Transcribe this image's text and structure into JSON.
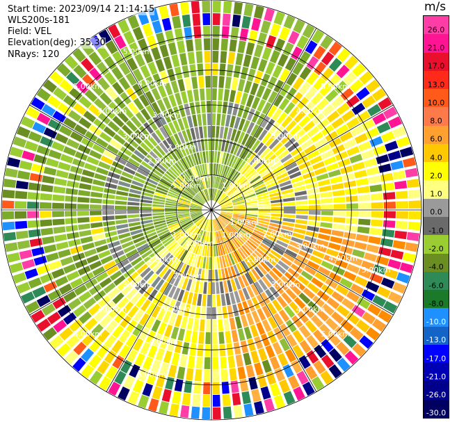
{
  "header": {
    "start_time": "Start time: 2023/09/14 21:14:15",
    "site": "WLS200s-181",
    "field": "Field: VEL",
    "elevation": "Elevation(deg): 35.30",
    "nrays": "NRays: 120"
  },
  "colorbar": {
    "unit": "m/s",
    "ticks": [
      "26.0",
      "21.0",
      "17.0",
      "13.0",
      "10.0",
      "8.0",
      "6.0",
      "4.0",
      "2.0",
      "1.0",
      "0.0",
      "-1.0",
      "-2.0",
      "-4.0",
      "-6.0",
      "-8.0",
      "-10.0",
      "-13.0",
      "-17.0",
      "-21.0",
      "-26.0",
      "-30.0"
    ],
    "colors": [
      "#ff3da6",
      "#ff1493",
      "#e8102c",
      "#ff2a1a",
      "#ff5a1a",
      "#ff7a4a",
      "#ffa030",
      "#ffc800",
      "#ffff00",
      "#ffff80",
      "#9a9a9a",
      "#6a6a6a",
      "#9acd32",
      "#6b8e23",
      "#2e8b57",
      "#1a7a2a",
      "#1e90ff",
      "#1464c8",
      "#0000ff",
      "#0000b4",
      "#00008b",
      "#000060"
    ]
  },
  "chart_data": {
    "type": "ppi",
    "title": "",
    "field": "VEL",
    "unit": "m/s",
    "range_rings_km": [
      1.0,
      2.0,
      3.0,
      4.0,
      5.0
    ],
    "range_ring_labels": [
      "1.00km",
      "2.00km",
      "3.00km",
      "4.00km",
      "5.00km"
    ],
    "nrays": 120,
    "elevation_deg": 35.3,
    "max_range_km": 6.0,
    "colorbar_range": [
      -30.0,
      26.0
    ]
  }
}
